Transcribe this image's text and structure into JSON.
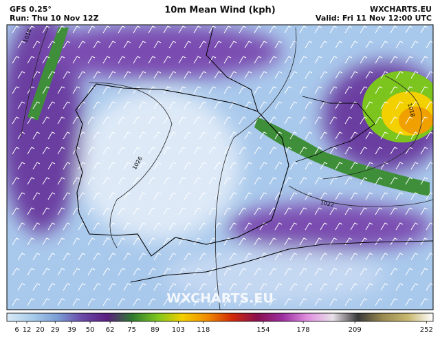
{
  "header": {
    "model": "GFS 0.25°",
    "run": "Run: Thu 10 Nov 12Z",
    "title": "10m Mean Wind (kph)",
    "site": "WXCHARTS.EU",
    "valid": "Valid: Fri 11 Nov 12:00 UTC"
  },
  "map": {
    "watermark": "WXCHARTS.EU",
    "isobar_labels": [
      "1018",
      "1026",
      "1018",
      "1022"
    ]
  },
  "colorbar": {
    "lim": [
      0,
      256
    ],
    "ticks": [
      6,
      12,
      20,
      29,
      39,
      50,
      62,
      75,
      89,
      103,
      118,
      154,
      178,
      209,
      252
    ],
    "colors": [
      "#d8eaf6",
      "#a9cdea",
      "#7b9fd6",
      "#6a4aa8",
      "#5a1f80",
      "#2f7a2f",
      "#7cc51e",
      "#f3d000",
      "#f08a00",
      "#d02a0a",
      "#8a1050",
      "#9c2fa0",
      "#e090e0",
      "#e8e0e8",
      "#3a3a3a",
      "#9a8a50",
      "#c8b870",
      "#ffffff"
    ]
  }
}
